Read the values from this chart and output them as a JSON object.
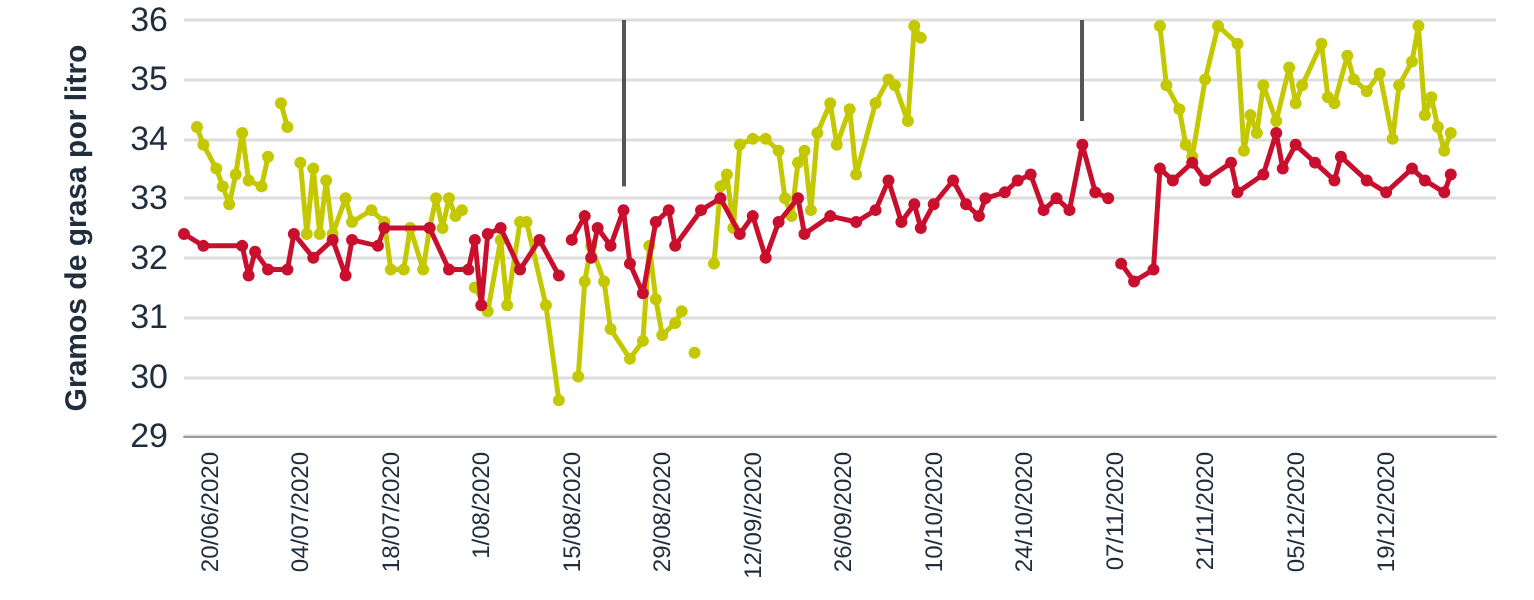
{
  "chart_data": {
    "type": "line",
    "ylabel": "Gramos de grasa por litro",
    "xlim": [
      "2020-06-16",
      "2021-01-05"
    ],
    "ylim": [
      29,
      36
    ],
    "yticks": [
      29,
      30,
      31,
      32,
      33,
      34,
      35,
      36
    ],
    "xticks": [
      {
        "value": "2020-06-20",
        "label": "20/06/2020"
      },
      {
        "value": "2020-07-04",
        "label": "04/07/2020"
      },
      {
        "value": "2020-07-18",
        "label": "18/07/2020"
      },
      {
        "value": "2020-08-01",
        "label": "1/08/2020"
      },
      {
        "value": "2020-08-15",
        "label": "15/08/2020"
      },
      {
        "value": "2020-08-29",
        "label": "29/08/2020"
      },
      {
        "value": "2020-09-12",
        "label": "12/09//2020"
      },
      {
        "value": "2020-09-26",
        "label": "26/09/2020"
      },
      {
        "value": "2020-10-10",
        "label": "10/10/2020"
      },
      {
        "value": "2020-10-24",
        "label": "24/10/2020"
      },
      {
        "value": "2020-11-07",
        "label": "07/11/2020"
      },
      {
        "value": "2020-11-21",
        "label": "21/11/2020"
      },
      {
        "value": "2020-12-05",
        "label": "05/12/2020"
      },
      {
        "value": "2020-12-19",
        "label": "19/12/2020"
      }
    ],
    "grid": "y",
    "marker": "circle",
    "line_style": "solid",
    "ref_lines": [
      {
        "axis": "x",
        "value": "2020-08-23",
        "color": "#555555"
      },
      {
        "axis": "x",
        "value": "2020-11-02",
        "color": "#555555"
      }
    ],
    "series": [
      {
        "color": "#c3c800",
        "x": [
          "2020-06-18",
          "2020-06-19",
          "2020-06-21",
          "2020-06-22",
          "2020-06-23",
          "2020-06-24",
          "2020-06-25",
          "2020-06-26",
          "2020-06-28",
          "2020-06-29",
          "2020-06-30",
          "2020-07-01",
          "2020-07-02",
          "2020-07-03",
          "2020-07-04",
          "2020-07-05",
          "2020-07-06",
          "2020-07-07",
          "2020-07-08",
          "2020-07-09",
          "2020-07-11",
          "2020-07-12",
          "2020-07-15",
          "2020-07-17",
          "2020-07-18",
          "2020-07-20",
          "2020-07-21",
          "2020-07-23",
          "2020-07-24",
          "2020-07-25",
          "2020-07-26",
          "2020-07-27",
          "2020-07-28",
          "2020-07-29",
          "2020-07-30",
          "2020-07-31",
          "2020-08-02",
          "2020-08-04",
          "2020-08-05",
          "2020-08-07",
          "2020-08-08",
          "2020-08-11",
          "2020-08-13",
          "2020-08-14",
          "2020-08-16",
          "2020-08-17",
          "2020-08-18",
          "2020-08-20",
          "2020-08-21",
          "2020-08-24",
          "2020-08-26",
          "2020-08-27",
          "2020-08-28",
          "2020-08-29",
          "2020-08-31",
          "2020-09-01",
          "2020-09-02",
          "2020-09-03",
          "2020-09-05",
          "2020-09-06",
          "2020-09-07",
          "2020-09-08",
          "2020-09-09",
          "2020-09-10",
          "2020-09-12",
          "2020-09-14",
          "2020-09-16",
          "2020-09-17",
          "2020-09-18",
          "2020-09-19",
          "2020-09-20",
          "2020-09-21",
          "2020-09-22",
          "2020-09-24",
          "2020-09-25",
          "2020-09-27",
          "2020-09-28",
          "2020-10-01",
          "2020-10-03",
          "2020-10-04",
          "2020-10-06",
          "2020-10-07",
          "2020-10-08",
          "2020-10-09",
          "2020-11-14",
          "2020-11-15",
          "2020-11-17",
          "2020-11-18",
          "2020-11-19",
          "2020-11-21",
          "2020-11-23",
          "2020-11-26",
          "2020-11-27",
          "2020-11-28",
          "2020-11-29",
          "2020-11-30",
          "2020-12-02",
          "2020-12-04",
          "2020-12-05",
          "2020-12-06",
          "2020-12-09",
          "2020-12-10",
          "2020-12-11",
          "2020-12-13",
          "2020-12-14",
          "2020-12-16",
          "2020-12-18",
          "2020-12-20",
          "2020-12-21",
          "2020-12-23",
          "2020-12-24",
          "2020-12-25",
          "2020-12-26",
          "2020-12-27",
          "2020-12-28",
          "2020-12-29"
        ],
        "values": [
          34.2,
          33.9,
          33.5,
          33.2,
          32.9,
          33.4,
          34.1,
          33.3,
          33.2,
          33.7,
          null,
          34.6,
          34.2,
          null,
          33.6,
          32.4,
          33.5,
          32.4,
          33.3,
          32.4,
          33.0,
          32.6,
          32.8,
          32.6,
          31.8,
          31.8,
          32.5,
          31.8,
          32.5,
          33.0,
          32.5,
          33.0,
          32.7,
          32.8,
          null,
          31.5,
          31.1,
          32.3,
          31.2,
          32.6,
          32.6,
          31.2,
          29.6,
          null,
          30.0,
          31.6,
          32.2,
          31.6,
          30.8,
          30.3,
          30.6,
          32.2,
          31.3,
          30.7,
          30.9,
          31.1,
          null,
          30.4,
          null,
          31.9,
          33.2,
          33.4,
          32.5,
          33.9,
          34.0,
          34.0,
          33.8,
          33.0,
          32.7,
          33.6,
          33.8,
          32.8,
          34.1,
          34.6,
          33.9,
          34.5,
          33.4,
          34.6,
          35.0,
          34.9,
          34.3,
          35.9,
          35.7,
          null,
          35.9,
          34.9,
          34.5,
          33.9,
          33.7,
          35.0,
          35.9,
          35.6,
          33.8,
          34.4,
          34.1,
          34.9,
          34.3,
          35.2,
          34.6,
          34.9,
          35.6,
          34.7,
          34.6,
          35.4,
          35.0,
          34.8,
          35.1,
          34.0,
          34.9,
          35.3,
          35.9,
          34.4,
          34.7,
          34.2,
          33.8,
          34.1
        ]
      },
      {
        "color": "#c8102e",
        "x": [
          "2020-06-16",
          "2020-06-19",
          "2020-06-25",
          "2020-06-26",
          "2020-06-27",
          "2020-06-29",
          "2020-07-02",
          "2020-07-03",
          "2020-07-06",
          "2020-07-09",
          "2020-07-11",
          "2020-07-12",
          "2020-07-16",
          "2020-07-17",
          "2020-07-24",
          "2020-07-27",
          "2020-07-30",
          "2020-07-31",
          "2020-08-01",
          "2020-08-02",
          "2020-08-04",
          "2020-08-07",
          "2020-08-10",
          "2020-08-13",
          "2020-08-14",
          "2020-08-15",
          "2020-08-17",
          "2020-08-18",
          "2020-08-19",
          "2020-08-21",
          "2020-08-23",
          "2020-08-24",
          "2020-08-26",
          "2020-08-28",
          "2020-08-30",
          "2020-08-31",
          "2020-09-04",
          "2020-09-07",
          "2020-09-10",
          "2020-09-12",
          "2020-09-14",
          "2020-09-16",
          "2020-09-19",
          "2020-09-20",
          "2020-09-24",
          "2020-09-28",
          "2020-10-01",
          "2020-10-03",
          "2020-10-05",
          "2020-10-07",
          "2020-10-08",
          "2020-10-10",
          "2020-10-13",
          "2020-10-15",
          "2020-10-17",
          "2020-10-18",
          "2020-10-21",
          "2020-10-23",
          "2020-10-25",
          "2020-10-27",
          "2020-10-29",
          "2020-10-31",
          "2020-11-02",
          "2020-11-04",
          "2020-11-06",
          "2020-11-07",
          "2020-11-08",
          "2020-11-10",
          "2020-11-13",
          "2020-11-14",
          "2020-11-16",
          "2020-11-19",
          "2020-11-21",
          "2020-11-25",
          "2020-11-26",
          "2020-11-30",
          "2020-12-02",
          "2020-12-03",
          "2020-12-05",
          "2020-12-08",
          "2020-12-11",
          "2020-12-12",
          "2020-12-16",
          "2020-12-19",
          "2020-12-23",
          "2020-12-25",
          "2020-12-28",
          "2020-12-29"
        ],
        "values": [
          32.4,
          32.2,
          32.2,
          31.7,
          32.1,
          31.8,
          31.8,
          32.4,
          32.0,
          32.3,
          31.7,
          32.3,
          32.2,
          32.5,
          32.5,
          31.8,
          31.8,
          32.3,
          31.2,
          32.4,
          32.5,
          31.8,
          32.3,
          31.7,
          null,
          32.3,
          32.7,
          32.0,
          32.5,
          32.2,
          32.8,
          31.9,
          31.4,
          32.6,
          32.8,
          32.2,
          32.8,
          33.0,
          32.4,
          32.7,
          32.0,
          32.6,
          33.0,
          32.4,
          32.7,
          32.6,
          32.8,
          33.3,
          32.6,
          32.9,
          32.5,
          32.9,
          33.3,
          32.9,
          32.7,
          33.0,
          33.1,
          33.3,
          33.4,
          32.8,
          33.0,
          32.8,
          33.9,
          33.1,
          33.0,
          null,
          31.9,
          31.6,
          31.8,
          33.5,
          33.3,
          33.6,
          33.3,
          33.6,
          33.1,
          33.4,
          34.1,
          33.5,
          33.9,
          33.6,
          33.3,
          33.7,
          33.3,
          33.1,
          33.5,
          33.3,
          33.1,
          33.4
        ]
      }
    ]
  }
}
